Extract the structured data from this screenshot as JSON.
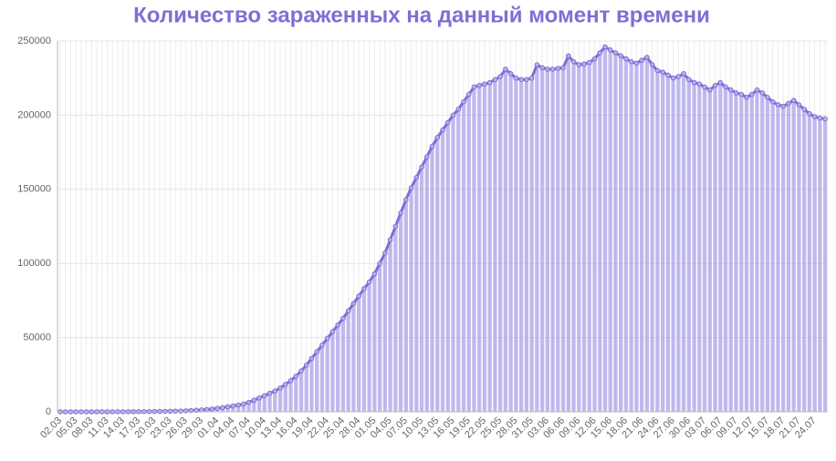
{
  "chart_data": {
    "type": "bar",
    "title": "Количество зараженных на данный момент времени",
    "categories": [
      "02.03",
      null,
      null,
      "05.03",
      null,
      null,
      "08.03",
      null,
      null,
      "11.03",
      null,
      null,
      "14.03",
      null,
      null,
      "17.03",
      null,
      null,
      "20.03",
      null,
      null,
      "23.03",
      null,
      null,
      "26.03",
      null,
      null,
      "29.03",
      null,
      null,
      "01.04",
      null,
      null,
      "04.04",
      null,
      null,
      "07.04",
      null,
      null,
      "10.04",
      null,
      null,
      "13.04",
      null,
      null,
      "16.04",
      null,
      null,
      "19.04",
      null,
      null,
      "22.04",
      null,
      null,
      "25.04",
      null,
      null,
      "28.04",
      null,
      null,
      "01.05",
      null,
      null,
      "04.05",
      null,
      null,
      "07.05",
      null,
      null,
      "10.05",
      null,
      null,
      "13.05",
      null,
      null,
      "16.05",
      null,
      null,
      "19.05",
      null,
      null,
      "22.05",
      null,
      null,
      "25.05",
      null,
      null,
      "28.05",
      null,
      null,
      "31.05",
      null,
      null,
      "03.06",
      null,
      null,
      "06.06",
      null,
      null,
      "09.06",
      null,
      null,
      "12.06",
      null,
      null,
      "15.06",
      null,
      null,
      "18.06",
      null,
      null,
      "21.06",
      null,
      null,
      "24.06",
      null,
      null,
      "27.06",
      null,
      null,
      "30.06",
      null,
      null,
      "03.07",
      null,
      null,
      "06.07",
      null,
      null,
      "09.07",
      null,
      null,
      "12.07",
      null,
      null,
      "15.07",
      null,
      null,
      "18.07",
      null,
      null,
      "21.07",
      null,
      null,
      "24.07",
      null,
      null
    ],
    "values": [
      3,
      3,
      3,
      3,
      3,
      4,
      10,
      10,
      15,
      20,
      28,
      34,
      45,
      59,
      63,
      93,
      114,
      147,
      199,
      253,
      306,
      367,
      438,
      495,
      658,
      840,
      1020,
      1264,
      1534,
      1836,
      2337,
      2777,
      3357,
      3893,
      4484,
      5181,
      6365,
      7822,
      9355,
      10837,
      12500,
      14000,
      16000,
      18500,
      21000,
      24000,
      27500,
      31500,
      36000,
      40500,
      45000,
      49500,
      54000,
      58500,
      63000,
      68000,
      73000,
      78000,
      83000,
      87500,
      93000,
      100000,
      107000,
      116000,
      125000,
      134000,
      143000,
      151000,
      158000,
      165000,
      172000,
      179000,
      185000,
      190000,
      195000,
      200000,
      204000,
      209000,
      214000,
      219000,
      220000,
      221000,
      222000,
      224000,
      226000,
      231000,
      228000,
      225000,
      224000,
      224000,
      225000,
      234000,
      232000,
      231000,
      231000,
      231500,
      232000,
      240000,
      236000,
      234000,
      234500,
      235500,
      238000,
      242000,
      246000,
      244000,
      242000,
      240000,
      238000,
      236000,
      235000,
      237000,
      239000,
      234000,
      230000,
      229000,
      227000,
      225000,
      226000,
      228000,
      224000,
      222000,
      221000,
      219000,
      217000,
      220000,
      222000,
      219000,
      217000,
      215000,
      214000,
      212000,
      214000,
      217000,
      215000,
      212000,
      209000,
      207000,
      206000,
      208000,
      210000,
      207000,
      204000,
      201000,
      199000,
      198000,
      197500
    ],
    "color": "rgba(160,150,230,0.65)",
    "line_color": "#7b70d6",
    "title_color": "#7d6fd4",
    "ylim": [
      0,
      250000
    ],
    "yticks": [
      0,
      50000,
      100000,
      150000,
      200000,
      250000
    ],
    "grid": true
  }
}
